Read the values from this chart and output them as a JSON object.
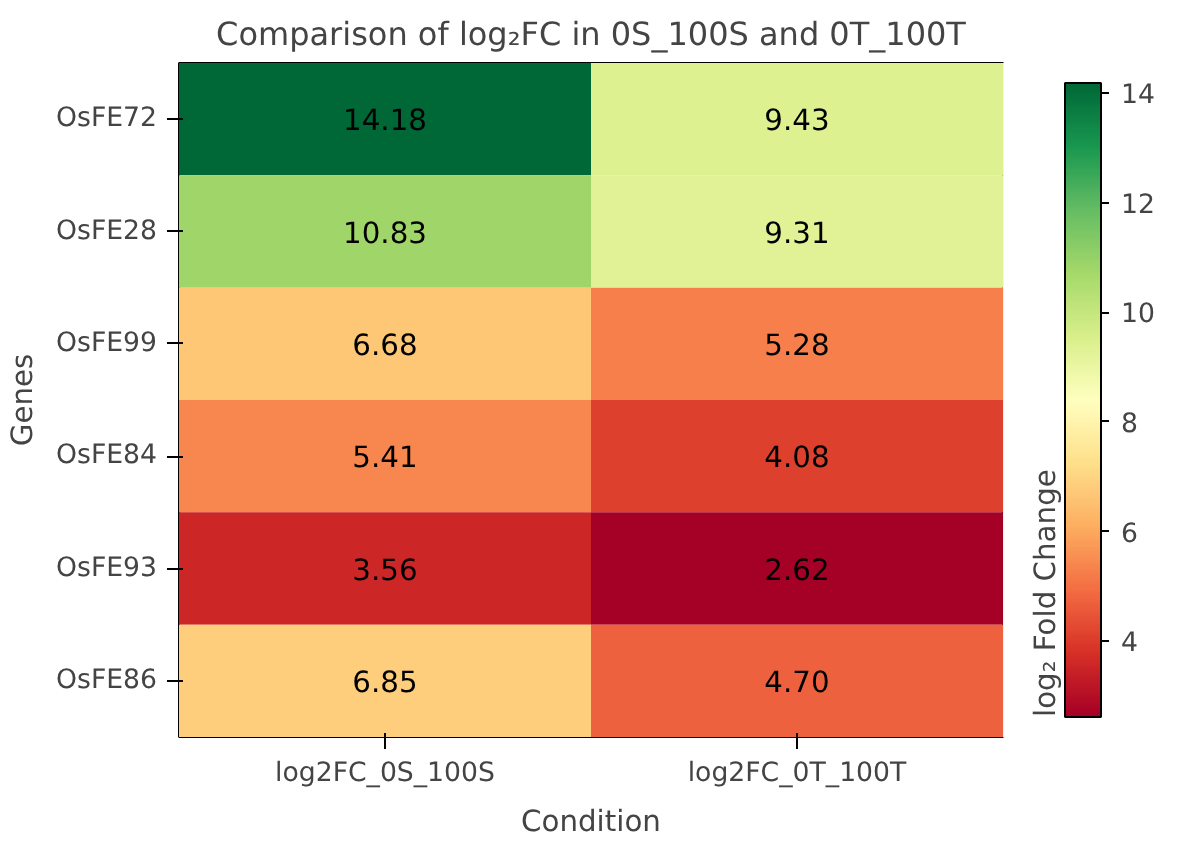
{
  "chart_data": {
    "type": "heatmap",
    "title": "Comparison of log₂FC in 0S_100S and 0T_100T",
    "xlabel": "Condition",
    "ylabel": "Genes",
    "clabel": "log₂ Fold Change",
    "categories": [
      "log2FC_0S_100S",
      "log2FC_0T_100T"
    ],
    "y_categories": [
      "OsFE72",
      "OsFE28",
      "OsFE99",
      "OsFE84",
      "OsFE93",
      "OsFE86"
    ],
    "cells": [
      [
        14.18,
        9.43
      ],
      [
        10.83,
        9.31
      ],
      [
        6.68,
        5.28
      ],
      [
        5.41,
        4.08
      ],
      [
        3.56,
        2.62
      ],
      [
        6.85,
        4.7
      ]
    ],
    "cell_labels": [
      [
        "14.18",
        "9.43"
      ],
      [
        "10.83",
        "9.31"
      ],
      [
        "6.68",
        "5.28"
      ],
      [
        "5.41",
        "4.08"
      ],
      [
        "3.56",
        "2.62"
      ],
      [
        "6.85",
        "4.70"
      ]
    ],
    "clim": [
      2.62,
      14.18
    ],
    "cticks": [
      4,
      6,
      8,
      10,
      12,
      14
    ]
  }
}
